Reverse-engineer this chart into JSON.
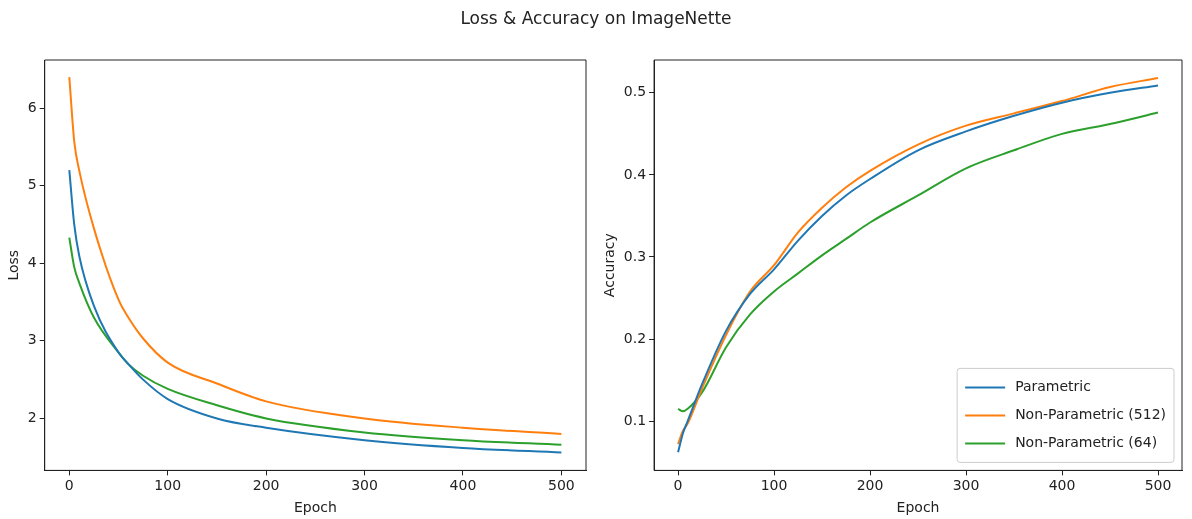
{
  "chart_data": [
    {
      "type": "line",
      "title": "Loss & Accuracy on ImageNette",
      "xlabel": "Epoch",
      "ylabel": "Loss",
      "xlim": [
        -25,
        525
      ],
      "xticks": [
        0,
        100,
        200,
        300,
        400,
        500
      ],
      "ylim": [
        1.33,
        6.62
      ],
      "yticks": [
        2,
        3,
        4,
        5,
        6
      ],
      "grid": false,
      "legend": false,
      "x": [
        0,
        5,
        10,
        25,
        50,
        60,
        75,
        100,
        150,
        200,
        300,
        400,
        500
      ],
      "series": [
        {
          "color": "#1f77b4",
          "values": [
            5.2,
            4.5,
            4.1,
            3.45,
            2.85,
            2.7,
            2.5,
            2.25,
            2.0,
            1.88,
            1.72,
            1.62,
            1.56
          ]
        },
        {
          "color": "#ff7f0e",
          "values": [
            6.4,
            5.57,
            5.2,
            4.45,
            3.53,
            3.3,
            3.03,
            2.72,
            2.45,
            2.22,
            2.0,
            1.88,
            1.8
          ]
        },
        {
          "color": "#2ca02c",
          "values": [
            4.33,
            3.95,
            3.75,
            3.3,
            2.85,
            2.7,
            2.55,
            2.38,
            2.17,
            2.0,
            1.82,
            1.72,
            1.66
          ]
        }
      ]
    },
    {
      "type": "line",
      "xlabel": "Epoch",
      "ylabel": "Accuracy",
      "xlim": [
        -25,
        525
      ],
      "xticks": [
        0,
        100,
        200,
        300,
        400,
        500
      ],
      "ylim": [
        0.04,
        0.54
      ],
      "yticks": [
        0.1,
        0.2,
        0.3,
        0.4,
        0.5
      ],
      "grid": false,
      "legend": "bottom right",
      "x": [
        0,
        5,
        10,
        25,
        50,
        75,
        100,
        125,
        150,
        175,
        200,
        250,
        300,
        350,
        400,
        450,
        500
      ],
      "series": [
        {
          "name": "Parametric",
          "color": "#1f77b4",
          "values": [
            0.062,
            0.085,
            0.1,
            0.145,
            0.21,
            0.255,
            0.285,
            0.32,
            0.35,
            0.375,
            0.395,
            0.43,
            0.453,
            0.472,
            0.488,
            0.5,
            0.509
          ]
        },
        {
          "name": "Non-Parametric (512)",
          "color": "#ff7f0e",
          "values": [
            0.072,
            0.088,
            0.097,
            0.14,
            0.205,
            0.258,
            0.29,
            0.33,
            0.36,
            0.385,
            0.405,
            0.437,
            0.46,
            0.475,
            0.49,
            0.507,
            0.518
          ]
        },
        {
          "name": "Non-Parametric (64)",
          "color": "#2ca02c",
          "values": [
            0.115,
            0.112,
            0.115,
            0.135,
            0.19,
            0.23,
            0.258,
            0.28,
            0.302,
            0.322,
            0.342,
            0.375,
            0.408,
            0.43,
            0.45,
            0.462,
            0.476
          ]
        }
      ]
    }
  ]
}
